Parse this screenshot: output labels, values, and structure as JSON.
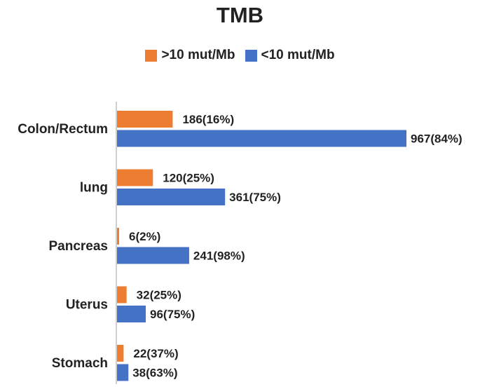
{
  "chart_data": {
    "type": "bar",
    "orientation": "horizontal",
    "title": "TMB",
    "categories": [
      "Colon/Rectum",
      "lung",
      "Pancreas",
      "Uterus",
      "Stomach"
    ],
    "series": [
      {
        "name": ">10 mut/Mb",
        "color": "#ED7D31",
        "values": [
          186,
          120,
          6,
          32,
          22
        ],
        "labels": [
          "186(16%)",
          "120(25%)",
          "6(2%)",
          "32(25%)",
          "22(37%)"
        ]
      },
      {
        "name": "<10 mut/Mb",
        "color": "#4472C4",
        "values": [
          967,
          361,
          241,
          96,
          38
        ],
        "labels": [
          "967(84%)",
          "361(75%)",
          "241(98%)",
          "96(75%)",
          "38(63%)"
        ]
      }
    ],
    "xlim": [
      0,
      967
    ],
    "legend_position": "top",
    "grid": false
  }
}
